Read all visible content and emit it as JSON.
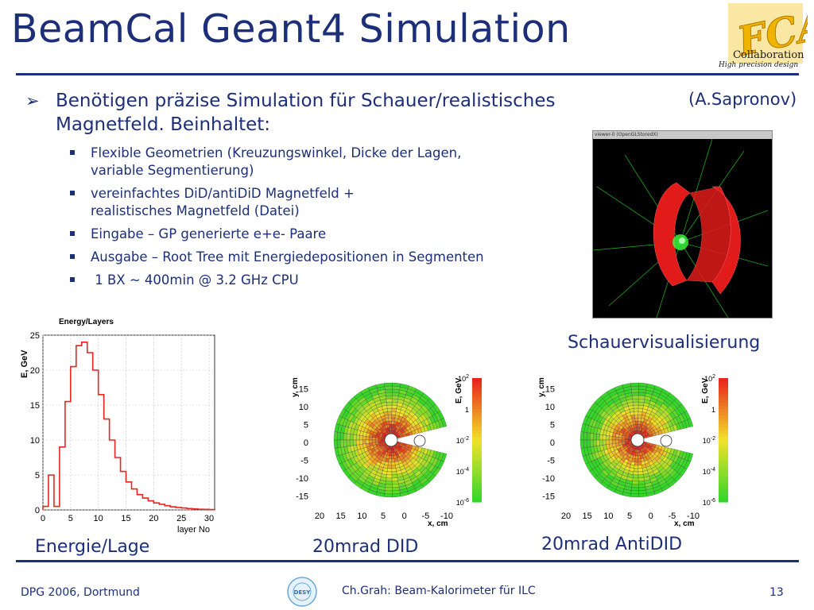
{
  "slide": {
    "title": "BeamCal Geant4 Simulation",
    "logo": {
      "big": "FCAL",
      "line1": "Collaboration",
      "line2": "High precision design"
    },
    "main_bullet": "Benötigen präzise Simulation für Schauer/realistisches Magnetfeld. Beinhaltet:",
    "author": "(A.Sapronov)",
    "sub_bullets": [
      "Flexible Geometrien (Kreuzungswinkel, Dicke der Lagen,\n   variable Segmentierung)",
      " vereinfachtes DiD/antiDiD Magnetfeld +\nrealistisches Magnetfeld (Datei)",
      "Eingabe – GP generierte e+e- Paare",
      "Ausgabe – Root Tree mit Energiedepositionen in Segmenten",
      " 1 BX ~ 400min @ 3.2 GHz CPU"
    ],
    "viewer_title": "viewer-0 (OpenGLStoredX)",
    "captions": {
      "visualization": "Schauervisualisierung",
      "energy": "Energie/Lage",
      "did": "20mrad DID",
      "antidid": "20mrad AntiDID"
    },
    "footer": {
      "left": "DPG 2006, Dortmund",
      "center": "Ch.Grah: Beam-Kalorimeter für ILC",
      "page": "13",
      "desy_logo": "DESY"
    }
  },
  "chart_data": [
    {
      "type": "line",
      "title": "Energy/Layers",
      "xlabel": "layer No",
      "ylabel": "E, GeV",
      "xlim": [
        0,
        31
      ],
      "ylim": [
        0,
        25
      ],
      "xticks": [
        0,
        5,
        10,
        15,
        20,
        25,
        30
      ],
      "yticks": [
        0,
        5,
        10,
        15,
        20,
        25
      ],
      "grid": true,
      "x": [
        0,
        1,
        2,
        3,
        4,
        5,
        6,
        7,
        8,
        9,
        10,
        11,
        12,
        13,
        14,
        15,
        16,
        17,
        18,
        19,
        20,
        21,
        22,
        23,
        24,
        25,
        26,
        27,
        28,
        29,
        30
      ],
      "values": [
        0.5,
        5,
        0.5,
        9,
        15.5,
        20.5,
        23.5,
        24,
        22.5,
        20,
        16.5,
        13,
        10,
        7.5,
        5.5,
        4,
        3,
        2.2,
        1.7,
        1.3,
        1,
        0.8,
        0.6,
        0.45,
        0.35,
        0.28,
        0.2,
        0.15,
        0.1,
        0.08,
        0.05
      ]
    },
    {
      "type": "heatmap",
      "title": "20mrad DID",
      "xlabel": "x, cm",
      "ylabel": "y, cm",
      "zlabel": "E, GeV",
      "xlim": [
        20,
        -10
      ],
      "ylim": [
        -18,
        18
      ],
      "xticks": [
        20,
        15,
        10,
        5,
        0,
        -5,
        -10
      ],
      "yticks": [
        15,
        10,
        5,
        0,
        -5,
        -10,
        -15
      ],
      "colorbar_ticks": [
        "10^2",
        "1",
        "10^-2",
        "10^-4",
        "10^-6"
      ],
      "colors": {
        "high": "#e8251e",
        "mid": "#f2e22a",
        "low": "#35d62a"
      }
    },
    {
      "type": "heatmap",
      "title": "20mrad AntiDID",
      "xlabel": "x, cm",
      "ylabel": "y, cm",
      "zlabel": "E, GeV",
      "xlim": [
        20,
        -10
      ],
      "ylim": [
        -18,
        18
      ],
      "xticks": [
        20,
        15,
        10,
        5,
        0,
        -5,
        -10
      ],
      "yticks": [
        15,
        10,
        5,
        0,
        -5,
        -10,
        -15
      ],
      "colorbar_ticks": [
        "10^2",
        "1",
        "10^-2",
        "10^-4",
        "10^-6"
      ],
      "colors": {
        "high": "#e8251e",
        "mid": "#f2e22a",
        "low": "#35d62a"
      }
    }
  ]
}
